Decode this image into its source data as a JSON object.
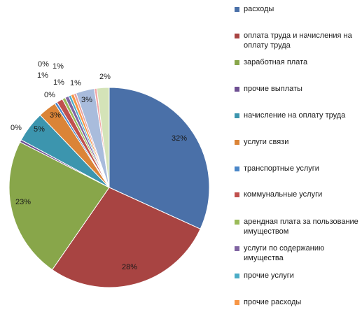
{
  "chart_data": {
    "type": "pie",
    "title": "",
    "series": [
      {
        "name": "расходы",
        "value": 32,
        "label": "32%",
        "color": "#4a70a8"
      },
      {
        "name": "оплата труда и начисления на оплату труда",
        "value": 28,
        "label": "28%",
        "color": "#a84442"
      },
      {
        "name": "заработная плата",
        "value": 23,
        "label": "23%",
        "color": "#88a64a"
      },
      {
        "name": "прочие выплаты",
        "value": 0.4,
        "label": "0%",
        "color": "#6e4f92"
      },
      {
        "name": "начисление на оплату труда",
        "value": 5,
        "label": "5%",
        "color": "#3c95ae"
      },
      {
        "name": "услуги связи",
        "value": 3,
        "label": "3%",
        "color": "#db8437"
      },
      {
        "name": "транспортные услуги",
        "value": 0.4,
        "label": "0%",
        "color": "#4a86c8"
      },
      {
        "name": "коммунальные услуги",
        "value": 1,
        "label": "1%",
        "color": "#c0504d"
      },
      {
        "name": "арендная плата за пользование имуществом",
        "value": 0.5,
        "label": "1%",
        "color": "#9bbb59"
      },
      {
        "name": "услуги по содержанию имущества",
        "value": 0.6,
        "label": "1%",
        "color": "#8064a2"
      },
      {
        "name": "прочие услуги",
        "value": 0.4,
        "label": "0%",
        "color": "#4bacc6"
      },
      {
        "name": "прочие расходы",
        "value": 0.5,
        "label": "1%",
        "color": "#f79646"
      },
      {
        "name": "",
        "value": 0.4,
        "label": "",
        "color": "#e6a0a0"
      },
      {
        "name": "",
        "value": 3,
        "label": "3%",
        "color": "#a9bcdc"
      },
      {
        "name": "",
        "value": 0.4,
        "label": "",
        "color": "#f0a5a5"
      },
      {
        "name": "",
        "value": 2,
        "label": "2%",
        "color": "#d4e3b8"
      }
    ],
    "legend": {
      "position": "right"
    }
  }
}
